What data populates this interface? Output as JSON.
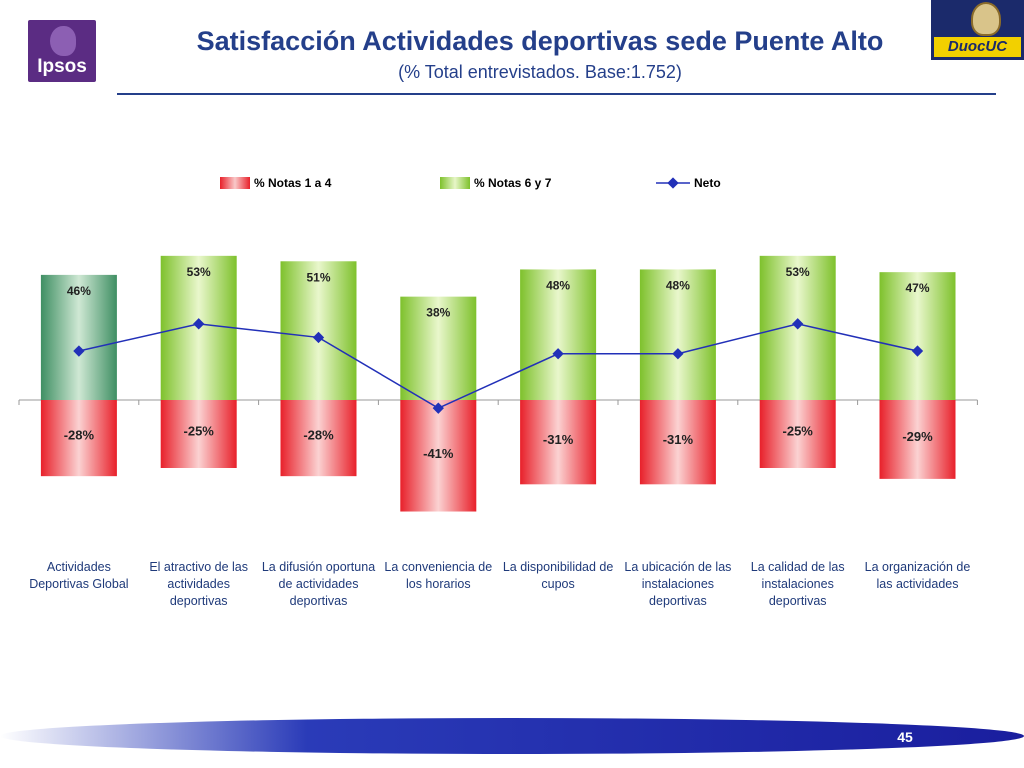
{
  "header": {
    "title": "Satisfacción Actividades deportivas sede Puente Alto",
    "subtitle": "(% Total entrevistados. Base:1.752)",
    "ipsos_logo": "Ipsos",
    "duoc_logo": "DuocUC"
  },
  "legend": {
    "red": "% Notas 1 a 4",
    "green": "% Notas 6 y 7",
    "line": "Neto"
  },
  "footer": {
    "page": "45"
  },
  "colors": {
    "title": "#243f8a",
    "green": "#7ec12c",
    "green_first": "#4a9a6c",
    "red": "#e8202a",
    "line": "#2230b8"
  },
  "chart_data": {
    "type": "bar",
    "title": "Satisfacción Actividades deportivas sede Puente Alto",
    "categories": [
      "Actividades Deportivas Global",
      "El atractivo de las actividades deportivas",
      "La difusión oportuna de actividades deportivas",
      "La conveniencia de los horarios",
      "La disponibilidad de cupos",
      "La ubicación de las instalaciones deportivas",
      "La calidad de las instalaciones deportivas",
      "La organización de las actividades"
    ],
    "series": [
      {
        "name": "% Notas 1 a 4",
        "kind": "bar",
        "values": [
          -28,
          -25,
          -28,
          -41,
          -31,
          -31,
          -25,
          -29
        ],
        "labels": [
          "-28%",
          "-25%",
          "-28%",
          "-41%",
          "-31%",
          "-31%",
          "-25%",
          "-29%"
        ]
      },
      {
        "name": "% Notas 6 y 7",
        "kind": "bar",
        "values": [
          46,
          53,
          51,
          38,
          48,
          48,
          53,
          47
        ],
        "labels": [
          "46%",
          "53%",
          "51%",
          "38%",
          "48%",
          "48%",
          "53%",
          "47%"
        ]
      },
      {
        "name": "Neto",
        "kind": "line",
        "values": [
          18,
          28,
          23,
          -3,
          17,
          17,
          28,
          18
        ]
      }
    ],
    "ylim": [
      -42,
      55
    ],
    "xlabel": "",
    "ylabel": "",
    "legend_position": "top"
  }
}
